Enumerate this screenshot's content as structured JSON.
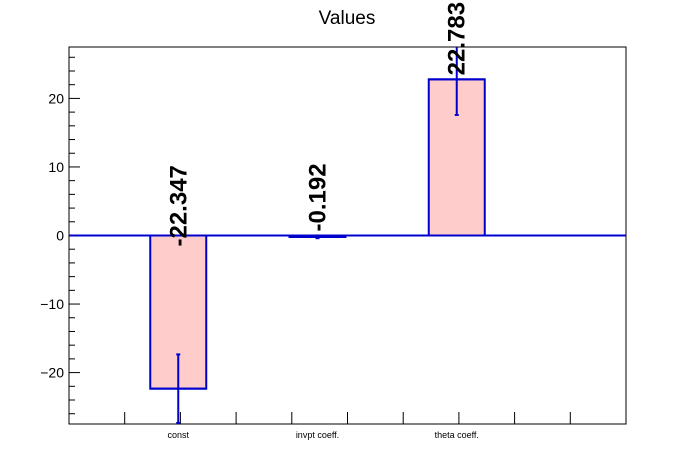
{
  "chart_data": {
    "type": "bar",
    "title": "Values",
    "xlabel": "",
    "ylabel": "",
    "categories": [
      "const",
      "invpt coeff.",
      "theta coeff."
    ],
    "values": [
      -22.347,
      -0.192,
      22.783
    ],
    "errors": [
      5.0,
      0.2,
      5.2
    ],
    "data_labels": [
      "-22.347",
      "-0.192",
      "22.783"
    ],
    "ylim": [
      -27.5,
      27.5
    ],
    "yticks": [
      -20,
      -10,
      0,
      10,
      20
    ],
    "yticks_minor_step": 2,
    "grid": false,
    "legend": "none",
    "colors": {
      "bar_fill": "#ffcccc",
      "bar_stroke": "#0000cc",
      "zero_line": "#0000cc",
      "error_bar": "#0000cc",
      "axis": "#000000"
    }
  }
}
